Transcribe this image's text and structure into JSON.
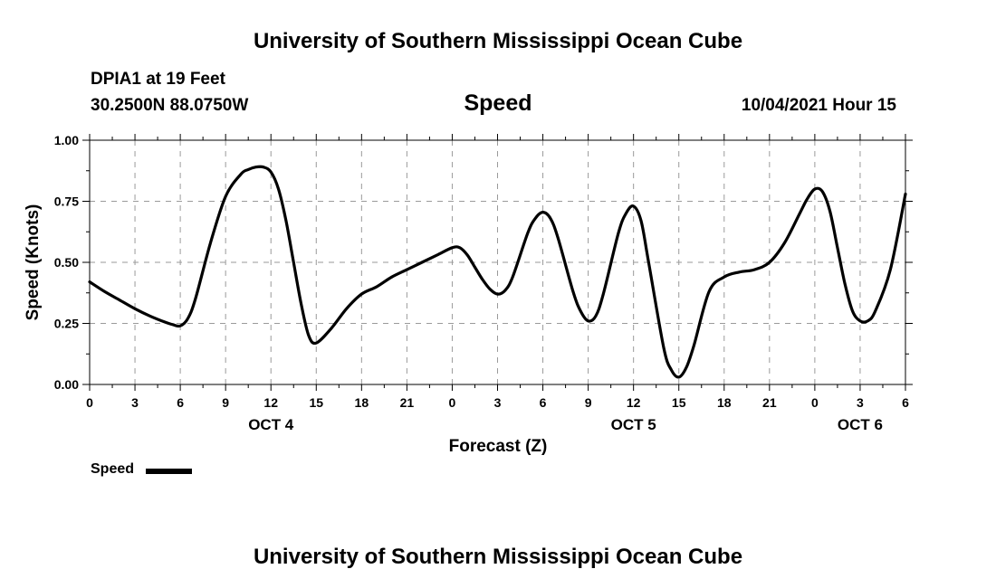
{
  "header": {
    "title_top": "University of Southern Mississippi Ocean Cube",
    "station": "DPIA1 at 19 Feet",
    "coords": "30.2500N  88.0750W",
    "variable": "Speed",
    "datetime": "10/04/2021 Hour 15"
  },
  "footer": {
    "title_bottom": "University of Southern Mississippi Ocean Cube"
  },
  "legend": {
    "label": "Speed"
  },
  "chart_data": {
    "type": "line",
    "title": "Speed",
    "xlabel": "Forecast (Z)",
    "ylabel": "Speed (Knots)",
    "xlim": [
      0,
      54
    ],
    "ylim": [
      0,
      1
    ],
    "yticks": [
      0,
      0.25,
      0.5,
      0.75,
      1.0
    ],
    "ytick_labels": [
      "0.00",
      "0.25",
      "0.50",
      "0.75",
      "1.00"
    ],
    "xticks": [
      0,
      3,
      6,
      9,
      12,
      15,
      18,
      21,
      24,
      27,
      30,
      33,
      36,
      39,
      42,
      45,
      48,
      51,
      54
    ],
    "xtick_labels": [
      "0",
      "3",
      "6",
      "9",
      "12",
      "15",
      "18",
      "21",
      "0",
      "3",
      "6",
      "9",
      "12",
      "15",
      "18",
      "21",
      "0",
      "3",
      "6"
    ],
    "day_labels": [
      {
        "x": 12,
        "label": "OCT 4"
      },
      {
        "x": 36,
        "label": "OCT 5"
      },
      {
        "x": 51,
        "label": "OCT 6"
      }
    ],
    "grid": true,
    "series": [
      {
        "name": "Speed",
        "color": "#000000",
        "x": [
          0,
          1,
          2,
          3,
          4,
          5,
          5.5,
          6,
          6.5,
          7,
          8,
          9,
          10,
          10.5,
          11,
          11.5,
          12,
          12.5,
          13,
          13.5,
          14,
          14.5,
          15,
          16,
          17,
          18,
          19,
          20,
          21,
          22,
          23,
          24,
          24.5,
          25,
          25.5,
          26,
          26.5,
          27,
          27.5,
          28,
          29,
          29.5,
          30,
          30.5,
          31,
          32,
          32.5,
          33,
          33.5,
          34,
          35,
          35.5,
          36,
          36.5,
          37,
          38,
          38.5,
          39,
          39.5,
          40,
          41,
          42,
          43,
          44,
          45,
          46,
          47,
          47.5,
          48,
          48.5,
          49,
          49.5,
          50,
          50.5,
          51,
          51.5,
          52,
          53,
          54
        ],
        "values": [
          0.42,
          0.38,
          0.345,
          0.31,
          0.28,
          0.255,
          0.245,
          0.24,
          0.27,
          0.35,
          0.58,
          0.77,
          0.86,
          0.88,
          0.89,
          0.89,
          0.87,
          0.8,
          0.67,
          0.5,
          0.33,
          0.2,
          0.17,
          0.23,
          0.31,
          0.37,
          0.4,
          0.44,
          0.47,
          0.5,
          0.53,
          0.56,
          0.56,
          0.53,
          0.48,
          0.43,
          0.39,
          0.37,
          0.385,
          0.44,
          0.62,
          0.68,
          0.705,
          0.68,
          0.6,
          0.38,
          0.3,
          0.26,
          0.28,
          0.37,
          0.62,
          0.7,
          0.73,
          0.67,
          0.5,
          0.15,
          0.06,
          0.03,
          0.07,
          0.16,
          0.38,
          0.44,
          0.46,
          0.47,
          0.5,
          0.58,
          0.7,
          0.76,
          0.8,
          0.79,
          0.71,
          0.56,
          0.41,
          0.3,
          0.26,
          0.26,
          0.3,
          0.47,
          0.78
        ]
      }
    ]
  }
}
